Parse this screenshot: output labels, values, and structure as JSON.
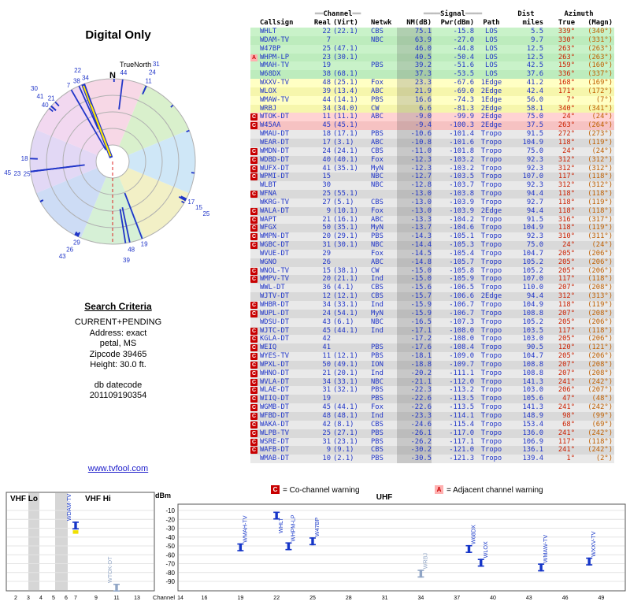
{
  "page": {
    "title": "Digital Only",
    "link": "www.tvfool.com"
  },
  "radar": {
    "north_label": "TrueNorth",
    "n_label": "N",
    "sector_colors": [
      "#f7d8e6",
      "#d9f0cc",
      "#cfe7f7",
      "#f2f0c6",
      "#d6f0d6",
      "#cddcf5",
      "#e2d8f5",
      "#f2d8f0"
    ],
    "spoke_color": "#2035c8",
    "highlight_color": "#ffe800",
    "labels": [
      {
        "t": "44",
        "az": 7,
        "r": 114
      },
      {
        "t": "11",
        "az": 24,
        "r": 112
      },
      {
        "t": "24",
        "az": 24,
        "r": 124
      },
      {
        "t": "31",
        "az": 24,
        "r": 136
      },
      {
        "t": "17",
        "az": 117,
        "r": 112
      },
      {
        "t": "15",
        "az": 118,
        "r": 124
      },
      {
        "t": "25",
        "az": 119,
        "r": 136
      },
      {
        "t": "19",
        "az": 159,
        "r": 112
      },
      {
        "t": "48",
        "az": 168,
        "r": 114
      },
      {
        "t": "39",
        "az": 172,
        "r": 126
      },
      {
        "t": "29",
        "az": 204,
        "r": 112
      },
      {
        "t": "26",
        "az": 206,
        "r": 124
      },
      {
        "t": "43",
        "az": 208,
        "r": 136
      },
      {
        "t": "25",
        "az": 262,
        "r": 110
      },
      {
        "t": "23",
        "az": 263,
        "r": 122
      },
      {
        "t": "45",
        "az": 264,
        "r": 134
      },
      {
        "t": "18",
        "az": 272,
        "r": 112
      },
      {
        "t": "40",
        "az": 310,
        "r": 112
      },
      {
        "t": "41",
        "az": 312,
        "r": 124
      },
      {
        "t": "30",
        "az": 313,
        "r": 136
      },
      {
        "t": "21",
        "az": 316,
        "r": 112
      },
      {
        "t": "7",
        "az": 330,
        "r": 112
      },
      {
        "t": "38",
        "az": 336,
        "r": 112
      },
      {
        "t": "22",
        "az": 339,
        "r": 124
      },
      {
        "t": "34",
        "az": 342,
        "r": 112
      }
    ]
  },
  "search": {
    "heading": "Search Criteria",
    "lines": [
      "CURRENT+PENDING",
      "Address: exact",
      "petal, MS",
      "Zipcode 39465",
      "Height: 30.0 ft."
    ],
    "datecode": [
      "db datecode",
      "201109190354"
    ]
  },
  "table": {
    "group_headers": {
      "channel": "Channel",
      "signal": "Signal",
      "dist": "Dist",
      "azimuth": "Azimuth"
    }
  },
  "legend": {
    "c_label": "C",
    "c_text": "= Co-channel warning",
    "a_label": "A",
    "a_text": "= Adjacent channel warning"
  },
  "spectrum": {
    "dbm_label": "dBm",
    "dbm_ticks": [
      -10,
      -20,
      -30,
      -40,
      -50,
      -60,
      -70,
      -80,
      -90
    ],
    "channel_label": "Channel",
    "vhf_lo_label": "VHF Lo",
    "vhf_hi_label": "VHF Hi",
    "uhf_label": "UHF",
    "vhf_ticks": [
      2,
      3,
      4,
      5,
      6,
      7,
      9,
      11,
      13
    ],
    "uhf_ticks": [
      14,
      16,
      19,
      22,
      25,
      28,
      31,
      34,
      37,
      40,
      43,
      46,
      49
    ]
  },
  "chart_data": {
    "type": "table",
    "title": "Digital Only",
    "columns": [
      "Callsign",
      "Real",
      "(Virt)",
      "Netwk",
      "NM(dB)",
      "Pwr(dBm)",
      "Path",
      "miles",
      "True",
      "(Magn)"
    ],
    "rows": [
      [
        "",
        "WHLT",
        "22",
        "(22.1)",
        "CBS",
        "75.1",
        "-15.8",
        "LOS",
        "5.5",
        "339°",
        "(340°)",
        "g"
      ],
      [
        "",
        "WDAM-TV",
        "7",
        "",
        "NBC",
        "63.9",
        "-27.0",
        "LOS",
        "9.7",
        "330°",
        "(331°)",
        "g"
      ],
      [
        "",
        "W47BP",
        "25",
        "(47.1)",
        "",
        "46.0",
        "-44.8",
        "LOS",
        "12.5",
        "263°",
        "(263°)",
        "g"
      ],
      [
        "A",
        "WHPM-LP",
        "23",
        "(30.1)",
        "",
        "40.5",
        "-50.4",
        "LOS",
        "12.5",
        "263°",
        "(263°)",
        "g"
      ],
      [
        "",
        "WMAH-TV",
        "19",
        "",
        "PBS",
        "39.2",
        "-51.6",
        "LOS",
        "42.5",
        "159°",
        "(160°)",
        "g"
      ],
      [
        "",
        "W68DX",
        "38",
        "(68.1)",
        "",
        "37.3",
        "-53.5",
        "LOS",
        "37.6",
        "336°",
        "(337°)",
        "g"
      ],
      [
        "",
        "WXXV-TV",
        "48",
        "(25.1)",
        "Fox",
        "23.3",
        "-67.6",
        "1Edge",
        "41.2",
        "168°",
        "(169°)",
        "y"
      ],
      [
        "",
        "WLOX",
        "39",
        "(13.4)",
        "ABC",
        "21.9",
        "-69.0",
        "2Edge",
        "42.4",
        "171°",
        "(172°)",
        "y"
      ],
      [
        "",
        "WMAW-TV",
        "44",
        "(14.1)",
        "PBS",
        "16.6",
        "-74.3",
        "1Edge",
        "56.0",
        "7°",
        "(7°)",
        "y"
      ],
      [
        "",
        "WRBJ",
        "34",
        "(34.0)",
        "CW",
        "6.6",
        "-81.3",
        "2Edge",
        "58.1",
        "340°",
        "(341°)",
        "y"
      ],
      [
        "C",
        "WTOK-DT",
        "11",
        "(11.1)",
        "ABC",
        "-9.0",
        "-99.9",
        "2Edge",
        "75.0",
        "24°",
        "(24°)",
        "r"
      ],
      [
        "C",
        "W45AA",
        "45",
        "(45.1)",
        "",
        "-9.4",
        "-100.3",
        "2Edge",
        "37.5",
        "263°",
        "(264°)",
        "r"
      ],
      [
        "",
        "WMAU-DT",
        "18",
        "(17.1)",
        "PBS",
        "-10.6",
        "-101.4",
        "Tropo",
        "91.5",
        "272°",
        "(273°)",
        "e"
      ],
      [
        "",
        "WEAR-DT",
        "17",
        "(3.1)",
        "ABC",
        "-10.8",
        "-101.6",
        "Tropo",
        "104.9",
        "118°",
        "(119°)",
        "e"
      ],
      [
        "C",
        "WMDN-DT",
        "24",
        "(24.1)",
        "CBS",
        "-11.0",
        "-101.8",
        "Tropo",
        "75.0",
        "24°",
        "(24°)",
        "e"
      ],
      [
        "C",
        "WDBD-DT",
        "40",
        "(40.1)",
        "Fox",
        "-12.3",
        "-103.2",
        "Tropo",
        "92.3",
        "312°",
        "(312°)",
        "e"
      ],
      [
        "C",
        "WUFX-DT",
        "41",
        "(35.1)",
        "MyN",
        "-12.3",
        "-103.2",
        "Tropo",
        "92.3",
        "312°",
        "(312°)",
        "e"
      ],
      [
        "C",
        "WPMI-DT",
        "15",
        "",
        "NBC",
        "-12.7",
        "-103.5",
        "Tropo",
        "107.0",
        "117°",
        "(118°)",
        "e"
      ],
      [
        "",
        "WLBT",
        "30",
        "",
        "NBC",
        "-12.8",
        "-103.7",
        "Tropo",
        "92.3",
        "312°",
        "(312°)",
        "e"
      ],
      [
        "C",
        "WFNA",
        "25",
        "(55.1)",
        "",
        "-13.0",
        "-103.8",
        "Tropo",
        "94.4",
        "118°",
        "(118°)",
        "e"
      ],
      [
        "",
        "WKRG-TV",
        "27",
        "(5.1)",
        "CBS",
        "-13.0",
        "-103.9",
        "Tropo",
        "92.7",
        "118°",
        "(119°)",
        "e"
      ],
      [
        "C",
        "WALA-DT",
        "9",
        "(10.1)",
        "Fox",
        "-13.0",
        "-103.9",
        "2Edge",
        "94.4",
        "118°",
        "(118°)",
        "e"
      ],
      [
        "C",
        "WAPT",
        "21",
        "(16.1)",
        "ABC",
        "-13.3",
        "-104.2",
        "Tropo",
        "91.5",
        "316°",
        "(317°)",
        "e"
      ],
      [
        "C",
        "WFGX",
        "50",
        "(35.1)",
        "MyN",
        "-13.7",
        "-104.6",
        "Tropo",
        "104.9",
        "118°",
        "(119°)",
        "e"
      ],
      [
        "C",
        "WMPN-DT",
        "20",
        "(29.1)",
        "PBS",
        "-14.3",
        "-105.1",
        "Tropo",
        "92.3",
        "310°",
        "(311°)",
        "e"
      ],
      [
        "C",
        "WGBC-DT",
        "31",
        "(30.1)",
        "NBC",
        "-14.4",
        "-105.3",
        "Tropo",
        "75.0",
        "24°",
        "(24°)",
        "e"
      ],
      [
        "",
        "WVUE-DT",
        "29",
        "",
        "Fox",
        "-14.5",
        "-105.4",
        "Tropo",
        "104.7",
        "205°",
        "(206°)",
        "e"
      ],
      [
        "",
        "WGNO",
        "26",
        "",
        "ABC",
        "-14.8",
        "-105.7",
        "Tropo",
        "105.2",
        "205°",
        "(206°)",
        "e"
      ],
      [
        "C",
        "WNOL-TV",
        "15",
        "(38.1)",
        "CW",
        "-15.0",
        "-105.8",
        "Tropo",
        "105.2",
        "205°",
        "(206°)",
        "e"
      ],
      [
        "C",
        "WMPV-TV",
        "20",
        "(21.1)",
        "Ind",
        "-15.0",
        "-105.9",
        "Tropo",
        "107.0",
        "117°",
        "(118°)",
        "e"
      ],
      [
        "",
        "WWL-DT",
        "36",
        "(4.1)",
        "CBS",
        "-15.6",
        "-106.5",
        "Tropo",
        "110.0",
        "207°",
        "(208°)",
        "e"
      ],
      [
        "",
        "WJTV-DT",
        "12",
        "(12.1)",
        "CBS",
        "-15.7",
        "-106.6",
        "2Edge",
        "94.4",
        "312°",
        "(313°)",
        "e"
      ],
      [
        "C",
        "WHBR-DT",
        "34",
        "(33.1)",
        "Ind",
        "-15.9",
        "-106.7",
        "Tropo",
        "104.9",
        "118°",
        "(119°)",
        "e"
      ],
      [
        "C",
        "WUPL-DT",
        "24",
        "(54.1)",
        "MyN",
        "-15.9",
        "-106.7",
        "Tropo",
        "108.8",
        "207°",
        "(208°)",
        "e"
      ],
      [
        "",
        "WDSU-DT",
        "43",
        "(6.1)",
        "NBC",
        "-16.5",
        "-107.3",
        "Tropo",
        "105.2",
        "205°",
        "(206°)",
        "e"
      ],
      [
        "C",
        "WJTC-DT",
        "45",
        "(44.1)",
        "Ind",
        "-17.1",
        "-108.0",
        "Tropo",
        "103.5",
        "117°",
        "(118°)",
        "e"
      ],
      [
        "C",
        "KGLA-DT",
        "42",
        "",
        "",
        "-17.2",
        "-108.0",
        "Tropo",
        "103.0",
        "205°",
        "(206°)",
        "e"
      ],
      [
        "C",
        "WEIQ",
        "41",
        "",
        "PBS",
        "-17.6",
        "-108.4",
        "Tropo",
        "90.5",
        "120°",
        "(121°)",
        "e"
      ],
      [
        "C",
        "WYES-TV",
        "11",
        "(12.1)",
        "PBS",
        "-18.1",
        "-109.0",
        "Tropo",
        "104.7",
        "205°",
        "(206°)",
        "e"
      ],
      [
        "C",
        "WPXL-DT",
        "50",
        "(49.1)",
        "ION",
        "-18.8",
        "-109.7",
        "Tropo",
        "108.8",
        "207°",
        "(208°)",
        "e"
      ],
      [
        "C",
        "WHNO-DT",
        "21",
        "(20.1)",
        "Ind",
        "-20.2",
        "-111.1",
        "Tropo",
        "108.8",
        "207°",
        "(208°)",
        "e"
      ],
      [
        "C",
        "WVLA-DT",
        "34",
        "(33.1)",
        "NBC",
        "-21.1",
        "-112.0",
        "Tropo",
        "141.3",
        "241°",
        "(242°)",
        "e"
      ],
      [
        "C",
        "WLAE-DT",
        "31",
        "(32.1)",
        "PBS",
        "-22.3",
        "-113.2",
        "Tropo",
        "103.0",
        "206°",
        "(207°)",
        "e"
      ],
      [
        "C",
        "WIIQ-DT",
        "19",
        "",
        "PBS",
        "-22.6",
        "-113.5",
        "Tropo",
        "105.6",
        "47°",
        "(48°)",
        "e"
      ],
      [
        "C",
        "WGMB-DT",
        "45",
        "(44.1)",
        "Fox",
        "-22.6",
        "-113.5",
        "Tropo",
        "141.3",
        "241°",
        "(242°)",
        "e"
      ],
      [
        "C",
        "WFBD-DT",
        "48",
        "(48.1)",
        "Ind",
        "-23.3",
        "-114.1",
        "Tropo",
        "148.9",
        "98°",
        "(99°)",
        "e"
      ],
      [
        "C",
        "WAKA-DT",
        "42",
        "(8.1)",
        "CBS",
        "-24.6",
        "-115.4",
        "Tropo",
        "153.4",
        "68°",
        "(69°)",
        "e"
      ],
      [
        "C",
        "WLPB-TV",
        "25",
        "(27.1)",
        "PBS",
        "-26.1",
        "-117.0",
        "Tropo",
        "136.0",
        "241°",
        "(242°)",
        "e"
      ],
      [
        "C",
        "WSRE-DT",
        "31",
        "(23.1)",
        "PBS",
        "-26.2",
        "-117.1",
        "Tropo",
        "106.9",
        "117°",
        "(118°)",
        "e"
      ],
      [
        "C",
        "WAFB-DT",
        "9",
        "(9.1)",
        "CBS",
        "-30.2",
        "-121.0",
        "Tropo",
        "136.1",
        "241°",
        "(242°)",
        "e"
      ],
      [
        "",
        "WMAB-DT",
        "10",
        "(2.1)",
        "PBS",
        "-30.5",
        "-121.3",
        "Tropo",
        "139.4",
        "1°",
        "(2°)",
        "e"
      ]
    ],
    "radar": {
      "type": "scatter",
      "polar": true,
      "angle_field": "True azimuth (deg)",
      "length_field": "NM(dB)",
      "highlight_callsign": "WHLT"
    },
    "spectrum": {
      "type": "scatter",
      "xlabel": "Channel",
      "ylabel": "dBm",
      "ylim": [
        -95,
        -5
      ],
      "vhf_points": [
        {
          "call": "WDAM-TV",
          "ch": 7,
          "dbm": -27.0,
          "highlight": true
        },
        {
          "call": "WTOK-DT",
          "ch": 11,
          "dbm": -99.9,
          "weak": true
        }
      ],
      "uhf_points": [
        {
          "call": "WMAH-TV",
          "ch": 19,
          "dbm": -51.6
        },
        {
          "call": "WHLT",
          "ch": 22,
          "dbm": -15.8
        },
        {
          "call": "WHPM-LP",
          "ch": 23,
          "dbm": -50.4
        },
        {
          "call": "W47BP",
          "ch": 25,
          "dbm": -44.8
        },
        {
          "call": "WRBJ",
          "ch": 34,
          "dbm": -81.3,
          "weak": true
        },
        {
          "call": "W68DX",
          "ch": 38,
          "dbm": -53.5
        },
        {
          "call": "WLOX",
          "ch": 39,
          "dbm": -69.0
        },
        {
          "call": "WMAW-TV",
          "ch": 44,
          "dbm": -74.3
        },
        {
          "call": "WXXV-TV",
          "ch": 48,
          "dbm": -67.6
        }
      ]
    }
  }
}
